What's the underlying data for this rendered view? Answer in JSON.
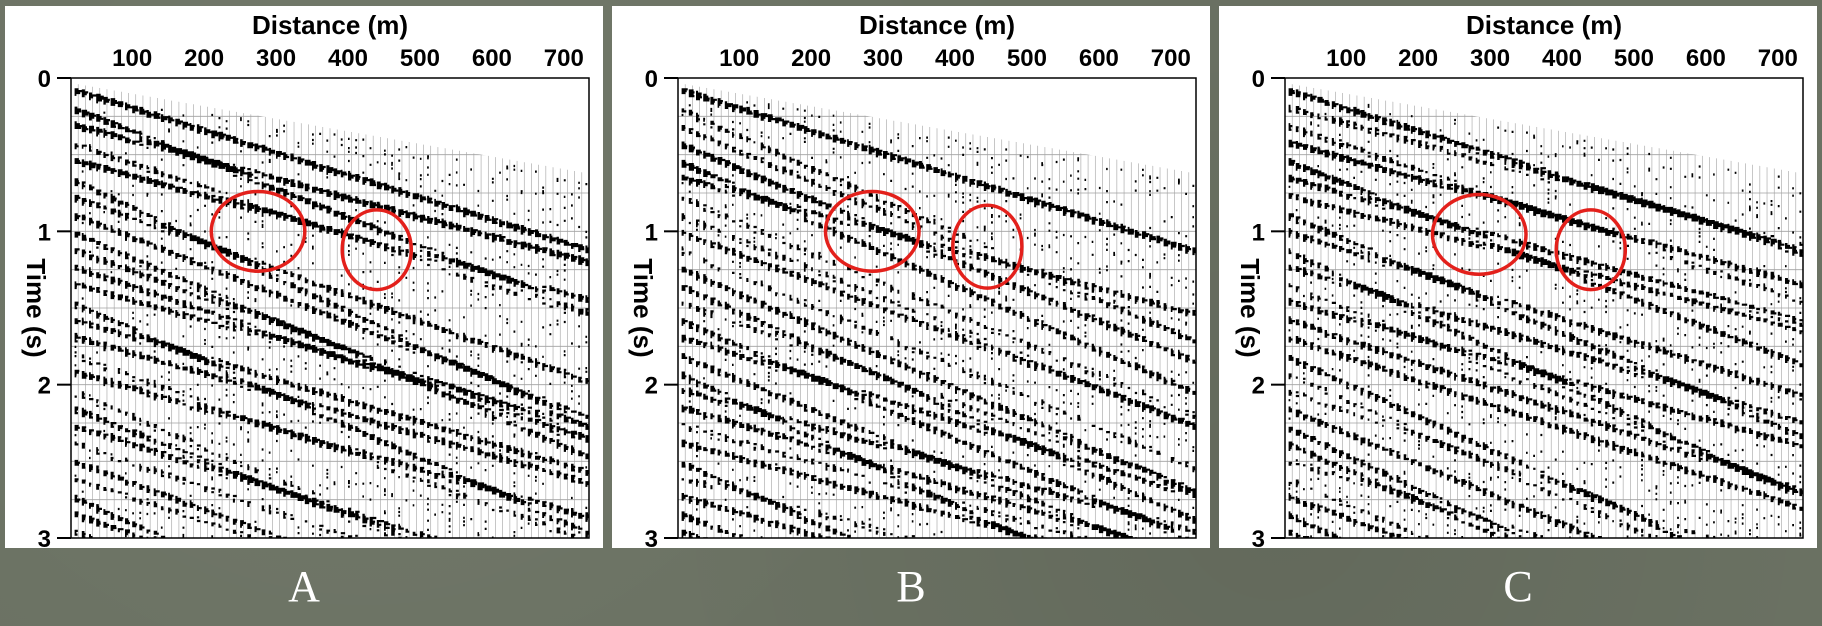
{
  "chart_data": [
    {
      "type": "seismic-wiggle",
      "panel_label": "A",
      "xlabel": "Distance (m)",
      "ylabel": "Time (s)",
      "x_ticks": [
        100,
        200,
        300,
        400,
        500,
        600,
        700
      ],
      "y_ticks": [
        0,
        1,
        2,
        3
      ],
      "xlim": [
        15,
        735
      ],
      "ylim": [
        0,
        3
      ],
      "grid": true,
      "annotations": [
        {
          "shape": "ellipse",
          "color": "#e3201b",
          "center_x": 275,
          "center_t": 1.0,
          "radius_x": 65,
          "radius_t": 0.26
        },
        {
          "shape": "ellipse",
          "color": "#e3201b",
          "center_x": 440,
          "center_t": 1.12,
          "radius_x": 48,
          "radius_t": 0.26
        }
      ]
    },
    {
      "type": "seismic-wiggle",
      "panel_label": "B",
      "xlabel": "Distance (m)",
      "ylabel": "Time (s)",
      "x_ticks": [
        100,
        200,
        300,
        400,
        500,
        600,
        700
      ],
      "y_ticks": [
        0,
        1,
        2,
        3
      ],
      "xlim": [
        15,
        735
      ],
      "ylim": [
        0,
        3
      ],
      "grid": true,
      "annotations": [
        {
          "shape": "ellipse",
          "color": "#e3201b",
          "center_x": 285,
          "center_t": 1.0,
          "radius_x": 65,
          "radius_t": 0.26
        },
        {
          "shape": "ellipse",
          "color": "#e3201b",
          "center_x": 445,
          "center_t": 1.1,
          "radius_x": 48,
          "radius_t": 0.27
        }
      ]
    },
    {
      "type": "seismic-wiggle",
      "panel_label": "C",
      "xlabel": "Distance (m)",
      "ylabel": "Time (s)",
      "x_ticks": [
        100,
        200,
        300,
        400,
        500,
        600,
        700
      ],
      "y_ticks": [
        0,
        1,
        2,
        3
      ],
      "xlim": [
        15,
        735
      ],
      "ylim": [
        0,
        3
      ],
      "grid": true,
      "annotations": [
        {
          "shape": "ellipse",
          "color": "#e3201b",
          "center_x": 285,
          "center_t": 1.02,
          "radius_x": 65,
          "radius_t": 0.26
        },
        {
          "shape": "ellipse",
          "color": "#e3201b",
          "center_x": 440,
          "center_t": 1.12,
          "radius_x": 48,
          "radius_t": 0.26
        }
      ]
    }
  ],
  "colors": {
    "background": "#6b7263",
    "ink": "#000000",
    "annotation": "#e3201b",
    "caption": "#ffffff"
  }
}
